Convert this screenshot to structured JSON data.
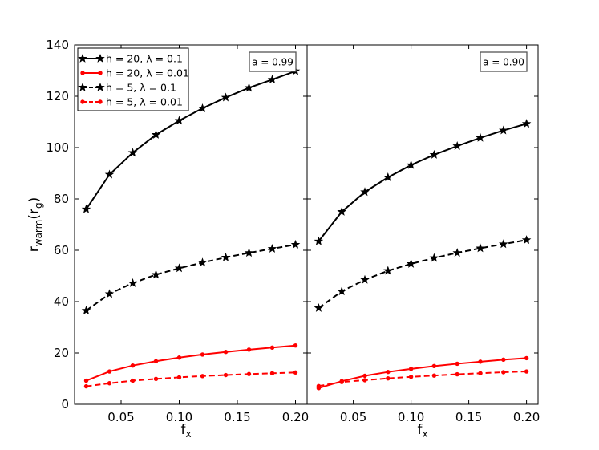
{
  "chart_data": {
    "type": "line",
    "x": [
      0.02,
      0.04,
      0.06,
      0.08,
      0.1,
      0.12,
      0.14,
      0.16,
      0.18,
      0.2
    ],
    "xlim": [
      0.01,
      0.21
    ],
    "ylim": [
      0,
      140
    ],
    "xticks": [
      "0.05",
      "0.10",
      "0.15",
      "0.20"
    ],
    "xtick_values": [
      0.05,
      0.1,
      0.15,
      0.2
    ],
    "yticks": [
      "0",
      "20",
      "40",
      "60",
      "80",
      "100",
      "120",
      "140"
    ],
    "ytick_values": [
      0,
      20,
      40,
      60,
      80,
      100,
      120,
      140
    ],
    "xlabel": "f",
    "xlabel_sub": "x",
    "ylabel": "r",
    "ylabel_sub": "warm",
    "ylabel_rest": "(r",
    "ylabel_rest_sub": "g",
    "ylabel_close": ")",
    "legend_position": "upper-left of left panel",
    "legend": [
      {
        "label": "h = 20, λ = 0.1",
        "color": "#000000",
        "dash": "solid",
        "marker": "star"
      },
      {
        "label": "h = 20, λ = 0.01",
        "color": "#ff0000",
        "dash": "solid",
        "marker": "circle"
      },
      {
        "label": "h = 5, λ = 0.1",
        "color": "#000000",
        "dash": "dashed",
        "marker": "star"
      },
      {
        "label": "h = 5, λ = 0.01",
        "color": "#ff0000",
        "dash": "dashed",
        "marker": "circle"
      }
    ],
    "panels": [
      {
        "annotation": "a = 0.99",
        "series": [
          {
            "legend_index": 0,
            "values": [
              76,
              89.5,
              98,
              105,
              110.5,
              115.3,
              119.5,
              123.3,
              126.5,
              129.8
            ]
          },
          {
            "legend_index": 1,
            "values": [
              9.2,
              12.8,
              15.1,
              16.8,
              18.2,
              19.4,
              20.4,
              21.3,
              22.1,
              22.9
            ]
          },
          {
            "legend_index": 2,
            "values": [
              36.5,
              43,
              47.2,
              50.5,
              53,
              55.2,
              57.2,
              59,
              60.6,
              62.2
            ]
          },
          {
            "legend_index": 3,
            "values": [
              7,
              8.2,
              9.2,
              9.9,
              10.5,
              11,
              11.4,
              11.8,
              12.1,
              12.4
            ]
          }
        ]
      },
      {
        "annotation": "a = 0.90",
        "series": [
          {
            "legend_index": 0,
            "values": [
              63.5,
              75,
              82.7,
              88.4,
              93.2,
              97.2,
              100.6,
              103.8,
              106.7,
              109.3
            ]
          },
          {
            "legend_index": 1,
            "values": [
              6.3,
              9,
              11.1,
              12.6,
              13.8,
              14.9,
              15.8,
              16.6,
              17.4,
              18
            ]
          },
          {
            "legend_index": 2,
            "values": [
              37.5,
              44,
              48.5,
              52,
              54.7,
              57,
              59,
              60.8,
              62.4,
              64
            ]
          },
          {
            "legend_index": 3,
            "values": [
              7.1,
              8.7,
              9.4,
              10.1,
              10.7,
              11.2,
              11.7,
              12.1,
              12.5,
              12.8
            ]
          }
        ]
      }
    ]
  }
}
